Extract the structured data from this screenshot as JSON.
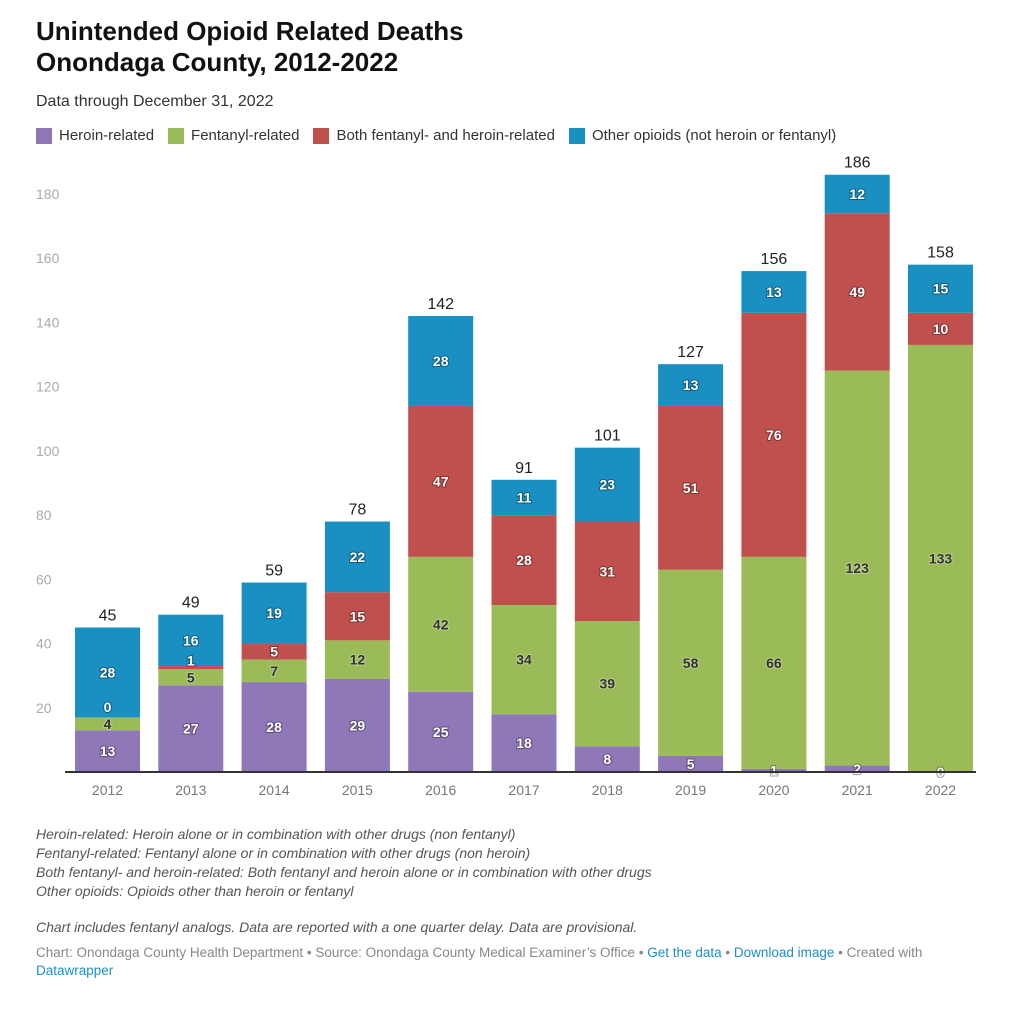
{
  "title_line1": "Unintended Opioid Related Deaths",
  "title_line2": "Onondaga County, 2012-2022",
  "subtitle": "Data through December 31, 2022",
  "notes": [
    "Heroin-related: Heroin alone or in combination with other drugs (non fentanyl)",
    "Fentanyl-related: Fentanyl alone or in combination with other drugs (non heroin)",
    "Both fentanyl- and heroin-related: Both fentanyl and heroin alone or in combination with other drugs",
    "Other opioids: Opioids other than heroin or fentanyl"
  ],
  "note2": "Chart includes fentanyl analogs. Data are reported with a one quarter delay. Data are provisional.",
  "footer": {
    "chart": "Chart: Onondaga County Health Department",
    "source": "Source: Onondaga County Medical Examiner’s Office",
    "sep": " • ",
    "get_data": "Get the data",
    "download": "Download image",
    "created": "Created with",
    "datawrapper": "Datawrapper"
  },
  "chart_data": {
    "type": "bar",
    "stacked": true,
    "categories": [
      "2012",
      "2013",
      "2014",
      "2015",
      "2016",
      "2017",
      "2018",
      "2019",
      "2020",
      "2021",
      "2022"
    ],
    "series": [
      {
        "name": "Heroin-related",
        "color": "#8f77b8",
        "label_color": "#ffffff",
        "values": [
          13,
          27,
          28,
          29,
          25,
          18,
          8,
          5,
          1,
          2,
          0
        ]
      },
      {
        "name": "Fentanyl-related",
        "color": "#9bbb59",
        "label_color": "#333333",
        "values": [
          4,
          5,
          7,
          12,
          42,
          34,
          39,
          58,
          66,
          123,
          133
        ]
      },
      {
        "name": "Both fentanyl- and heroin-related",
        "color": "#c0504d",
        "label_color": "#ffffff",
        "values": [
          0,
          1,
          5,
          15,
          47,
          28,
          31,
          51,
          76,
          49,
          10
        ]
      },
      {
        "name": "Other opioids (not heroin or fentanyl)",
        "color": "#1a8fc1",
        "label_color": "#ffffff",
        "values": [
          28,
          16,
          19,
          22,
          28,
          11,
          23,
          13,
          13,
          12,
          15
        ]
      }
    ],
    "totals": [
      45,
      49,
      59,
      78,
      142,
      91,
      101,
      127,
      156,
      186,
      158
    ],
    "ylim": [
      0,
      180
    ],
    "yticks": [
      20,
      40,
      60,
      80,
      100,
      120,
      140,
      160,
      180
    ],
    "grid": false,
    "legend_placement": "top-left"
  }
}
